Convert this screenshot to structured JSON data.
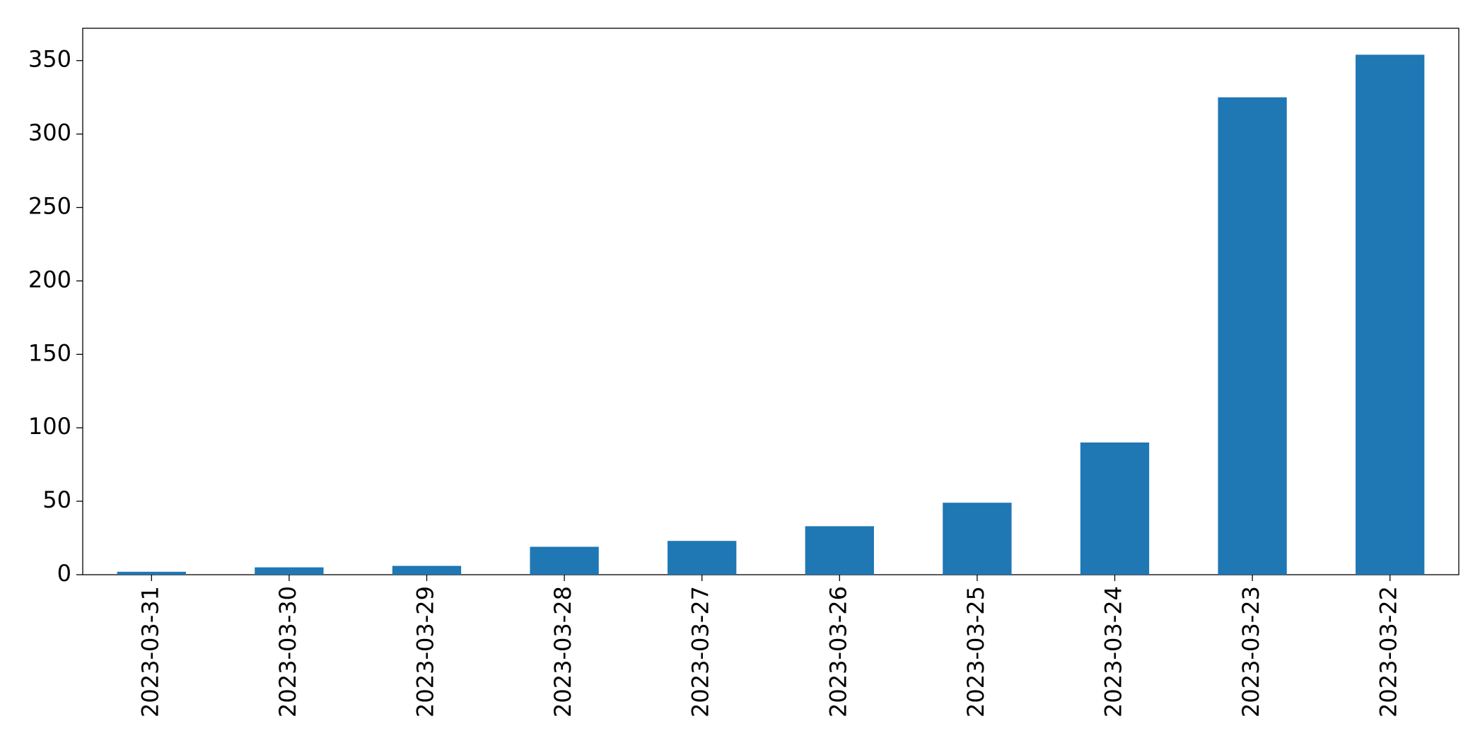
{
  "chart_data": {
    "type": "bar",
    "categories": [
      "2023-03-31",
      "2023-03-30",
      "2023-03-29",
      "2023-03-28",
      "2023-03-27",
      "2023-03-26",
      "2023-03-25",
      "2023-03-24",
      "2023-03-23",
      "2023-03-22"
    ],
    "values": [
      2,
      5,
      6,
      19,
      23,
      33,
      49,
      90,
      325,
      354
    ],
    "color": "#1f77b4",
    "ylim": [
      0,
      372
    ],
    "yticks": [
      0,
      50,
      100,
      150,
      200,
      250,
      300,
      350
    ],
    "grid": false
  }
}
